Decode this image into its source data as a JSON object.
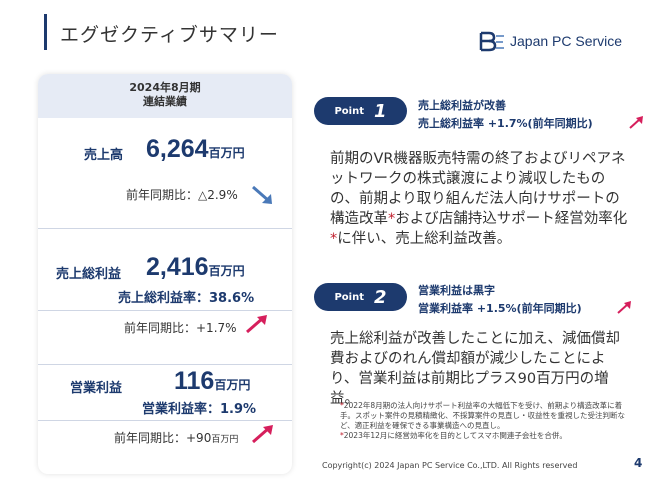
{
  "header": {
    "title": "エグゼクティブサマリー",
    "logo_text": "Japan PC Service"
  },
  "card": {
    "period": "2024年8月期",
    "scope": "連結業績",
    "sales": {
      "label": "売上高",
      "value": "6,264",
      "unit": "百万円",
      "yoy": "前年同期比：△2.9%"
    },
    "gross": {
      "label": "売上総利益",
      "value": "2,416",
      "unit": "百万円",
      "rate": "売上総利益率：38.6%",
      "yoy": "前年同期比：+1.7%"
    },
    "op": {
      "label": "営業利益",
      "value": "116",
      "unit": "百万円",
      "rate": "営業利益率：1.9%",
      "yoy": "前年同期比：+90",
      "yoy_unit": "百万円"
    }
  },
  "points": [
    {
      "word": "Point",
      "num": "1",
      "head1": "売上総利益が改善",
      "head2": "売上総利益率 +1.7%(前年同期比)",
      "body_a": "前期のVR機器販売特需の終了およびリペアネットワークの株式譲渡により減収したものの、前期より取り組んだ法人向けサポートの構造改革",
      "star": "*",
      "body_b": "および店舗持込サポート経営効率化",
      "body_c": "に伴い、売上総利益改善。"
    },
    {
      "word": "Point",
      "num": "2",
      "head1": "営業利益は黒字",
      "head2": "営業利益率 +1.5%(前年同期比)",
      "body": "売上総利益が改善したことに加え、減価償却費およびのれん償却額が減少したことにより、営業利益は前期比プラス90百万円の増益。"
    }
  ],
  "notes": {
    "n1": "2022年8月期の法人向けサポート利益率の大幅低下を受け、前期より構造改革に着手。スポット案件の見積精緻化、不採算案件の見直し・収益性を重視した受注判断など、適正利益を確保できる事業構造への見直し。",
    "n2": "2023年12月に経営効率化を目的としてスマホ関連子会社を合併。"
  },
  "footer": {
    "copyright": "Copyright(c) 2024 Japan PC Service Co.,LTD. All Rights reserved",
    "page": "4"
  },
  "colors": {
    "navy": "#1d3a6e",
    "pink": "#d61f5c",
    "blue_arrow": "#4a79b8",
    "card_head": "#e6ebf5"
  }
}
